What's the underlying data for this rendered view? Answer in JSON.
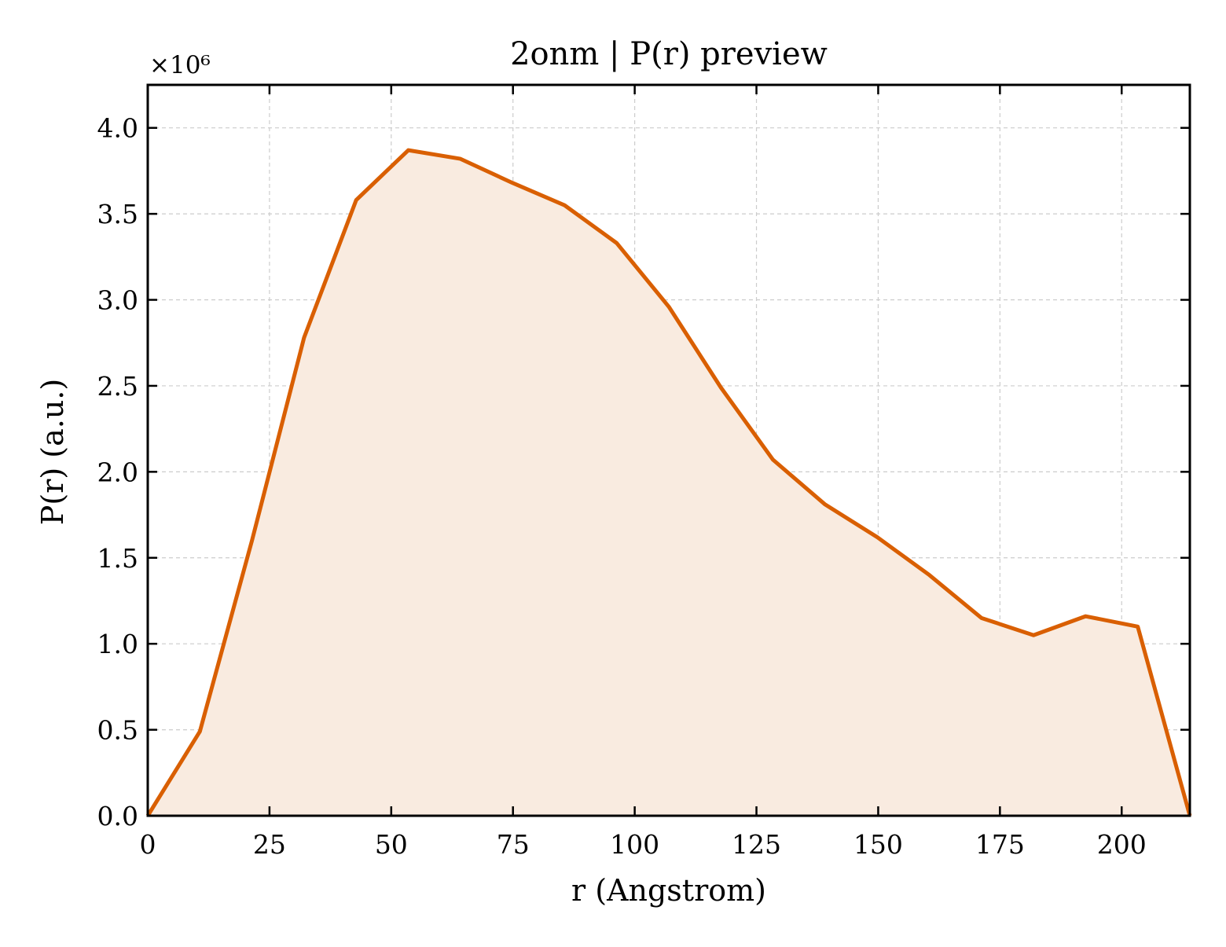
{
  "chart_data": {
    "type": "area",
    "title": "2onm | P(r) preview",
    "xlabel": "r (Angstrom)",
    "ylabel": "P(r) (a.u.)",
    "y_offset_label": "×10⁶",
    "y_scale_factor": 1000000,
    "xlim": [
      0,
      214
    ],
    "ylim": [
      0,
      4.25
    ],
    "x_ticks": [
      0,
      25,
      50,
      75,
      100,
      125,
      150,
      175,
      200
    ],
    "y_ticks": [
      0.0,
      0.5,
      1.0,
      1.5,
      2.0,
      2.5,
      3.0,
      3.5,
      4.0
    ],
    "x_tick_labels": [
      "0",
      "25",
      "50",
      "75",
      "100",
      "125",
      "150",
      "175",
      "200"
    ],
    "y_tick_labels": [
      "0.0",
      "0.5",
      "1.0",
      "1.5",
      "2.0",
      "2.5",
      "3.0",
      "3.5",
      "4.0"
    ],
    "grid": true,
    "legend": "none",
    "colors": {
      "line": "#d95f02",
      "fill": "#f9ebe0",
      "grid": "#cccccc",
      "axes": "#000000"
    },
    "series": [
      {
        "x": [
          0,
          10.7,
          21.4,
          32.1,
          42.8,
          53.5,
          64.2,
          74.9,
          85.6,
          96.3,
          107.0,
          117.7,
          128.4,
          139.1,
          149.8,
          160.5,
          171.2,
          181.9,
          192.6,
          203.3,
          214.0
        ],
        "y": [
          0.0,
          0.49,
          1.6,
          2.78,
          3.58,
          3.87,
          3.82,
          3.68,
          3.55,
          3.33,
          2.96,
          2.49,
          2.07,
          1.81,
          1.62,
          1.4,
          1.15,
          1.05,
          1.16,
          1.1,
          0.0
        ]
      }
    ]
  }
}
